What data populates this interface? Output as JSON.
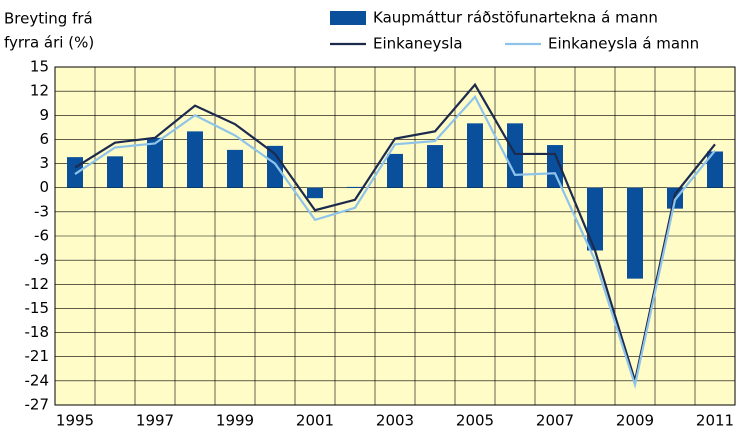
{
  "chart_data": {
    "type": "bar_line",
    "ylabel": [
      "Breyting frá",
      "fyrra ári (%)"
    ],
    "categories": [
      "1995",
      null,
      "1997",
      null,
      "1999",
      null,
      "2001",
      null,
      "2003",
      null,
      "2005",
      null,
      "2007",
      null,
      "2009",
      null,
      "2011"
    ],
    "series": [
      {
        "name": "Kaupmáttur ráðstöfunartekna á mann",
        "type": "bar",
        "color": "#0a4f9c",
        "values": [
          3.8,
          3.9,
          6.2,
          7.0,
          4.7,
          5.2,
          -1.3,
          0.1,
          4.2,
          5.3,
          8.0,
          8.0,
          5.3,
          -7.8,
          -11.3,
          -2.6,
          4.5
        ]
      },
      {
        "name": "Einkaneysla",
        "type": "line",
        "color": "#1c2a4e",
        "values": [
          2.5,
          5.6,
          6.2,
          10.2,
          7.9,
          4.2,
          -2.8,
          -1.5,
          6.1,
          7.0,
          12.8,
          4.2,
          4.2,
          -7.8,
          -24.0,
          -0.8,
          5.4
        ]
      },
      {
        "name": "Einkaneysla á mann",
        "type": "line",
        "color": "#8fc4ea",
        "values": [
          1.7,
          5.0,
          5.5,
          9.0,
          6.5,
          3.0,
          -4.0,
          -2.5,
          5.4,
          5.8,
          11.3,
          1.6,
          1.8,
          -9.0,
          -24.5,
          -1.5,
          4.6
        ]
      }
    ],
    "ylim": [
      -27,
      15
    ],
    "yticks": [
      15,
      12,
      9,
      6,
      3,
      0,
      -3,
      -6,
      -9,
      -12,
      -15,
      -18,
      -21,
      -24,
      -27
    ],
    "grid": true,
    "background": "#fffcc8"
  }
}
